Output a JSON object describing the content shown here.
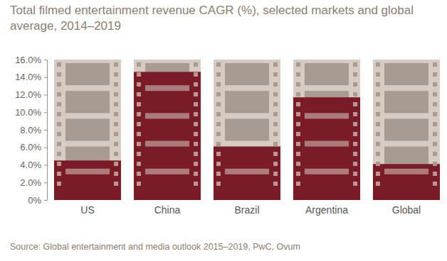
{
  "chart_data": {
    "type": "bar",
    "title": "Total filmed entertainment revenue CAGR (%), selected markets and global average, 2014–2019",
    "source": "Source: Global entertainment and media outlook 2015–2019, PwC, Ovum",
    "categories": [
      "US",
      "China",
      "Brazil",
      "Argentina",
      "Global"
    ],
    "values": [
      4.5,
      14.6,
      6.1,
      11.7,
      4.1
    ],
    "color": "#7a1c27",
    "ylim": [
      0,
      16
    ],
    "yticks": [
      {
        "value": 0,
        "label": "0%"
      },
      {
        "value": 2,
        "label": "2.0%"
      },
      {
        "value": 4,
        "label": "4.0%"
      },
      {
        "value": 6,
        "label": "6.0%"
      },
      {
        "value": 8,
        "label": "8.0%"
      },
      {
        "value": 10,
        "label": "10.0%"
      },
      {
        "value": 12,
        "label": "12.0%"
      },
      {
        "value": 14,
        "label": "14.0%"
      },
      {
        "value": 16,
        "label": "16.0%"
      }
    ],
    "grid": false
  }
}
